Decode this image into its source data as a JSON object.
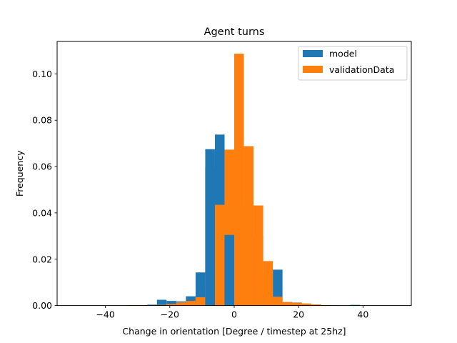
{
  "chart_data": {
    "type": "bar",
    "title": "Agent turns",
    "xlabel": "Change in orientation [Degree / timestep at 25hz]",
    "ylabel": "Frequency",
    "xlim": [
      -55,
      55
    ],
    "ylim": [
      0,
      0.114
    ],
    "xticks": [
      -40,
      -20,
      0,
      20,
      40
    ],
    "yticks": [
      0.0,
      0.02,
      0.04,
      0.06,
      0.08,
      0.1
    ],
    "xtick_labels": [
      "−40",
      "−20",
      "0",
      "20",
      "40"
    ],
    "ytick_labels": [
      "0.00",
      "0.02",
      "0.04",
      "0.06",
      "0.08",
      "0.10"
    ],
    "grid": false,
    "legend_position": "top-right",
    "bin_width": 3.0,
    "bin_centers": [
      -33,
      -30,
      -27,
      -24,
      -21,
      -18,
      -15,
      -12,
      -9,
      -6,
      -3,
      0,
      3,
      6,
      9,
      12,
      15,
      18,
      21,
      24,
      27,
      30,
      33,
      36,
      39
    ],
    "series": [
      {
        "name": "model",
        "color": "#1f77b4",
        "values": [
          0,
          0,
          0,
          0.0004,
          0.0025,
          0.002,
          0.0018,
          0.004,
          0.0143,
          0.0598,
          0.0738,
          0.0402,
          0.0272,
          0.0432,
          0.0302,
          0.0052,
          0.0155,
          0.0015,
          0.0013,
          0,
          0,
          0,
          0,
          0,
          0.0003
        ]
      },
      {
        "name": "validationData",
        "color": "#ff7f0e",
        "values": [
          0.0002,
          0.0002,
          0.0002,
          0.0003,
          0.0007,
          0.0014,
          0.002,
          0.0036,
          0.0078,
          0.0435,
          0.0673,
          0.1087,
          0.0688,
          0.0432,
          0.0192,
          0.0038,
          0.0015,
          0.0012,
          0.0009,
          0.0005,
          0.0002,
          0.0001,
          0,
          0,
          0
        ]
      }
    ],
    "extra_bars": {
      "model": [
        {
          "x": -7.5,
          "value": 0.0675
        },
        {
          "x": -1.5,
          "value": 0.0305
        }
      ]
    }
  }
}
